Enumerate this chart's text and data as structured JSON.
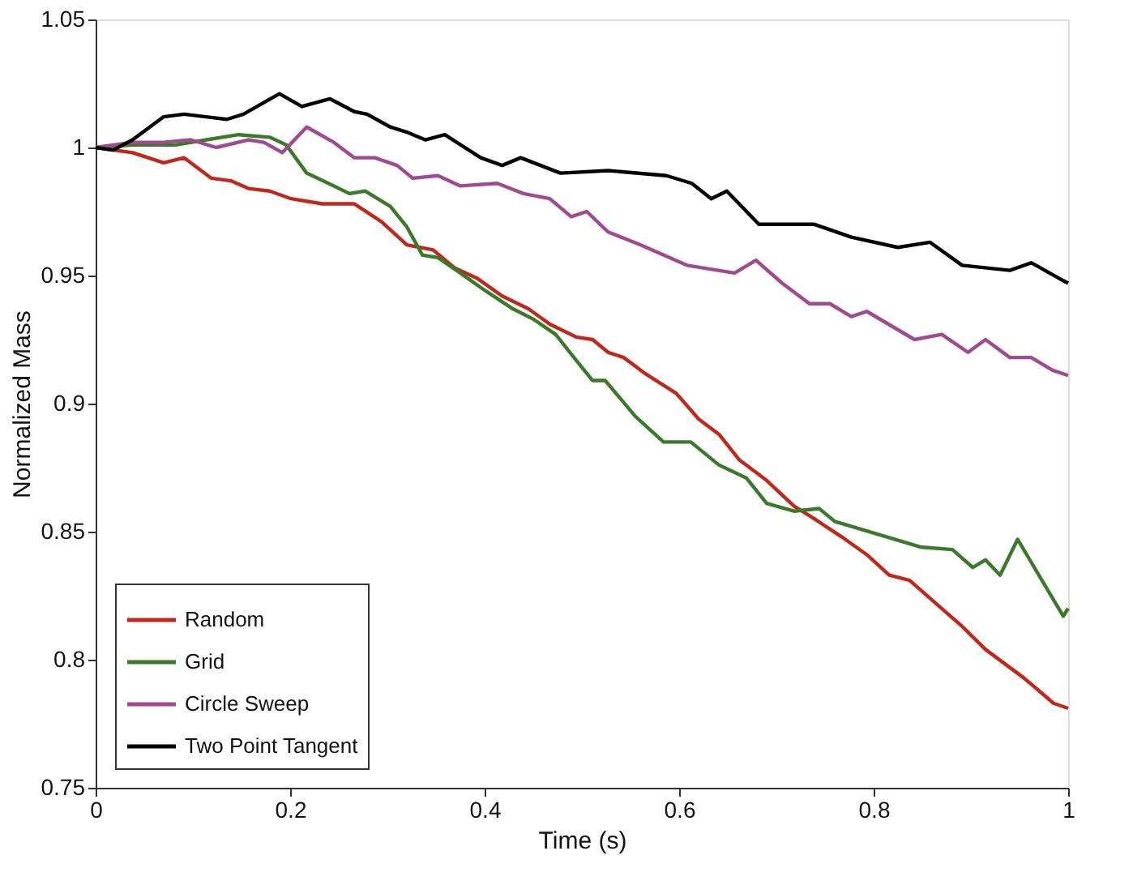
{
  "chart_data": {
    "type": "line",
    "xlabel": "Time (s)",
    "ylabel": "Normalized Mass",
    "xlim": [
      0,
      1
    ],
    "xticks": [
      0,
      0.2,
      0.4,
      0.6,
      0.8,
      1
    ],
    "ylim": [
      0.75,
      1.05
    ],
    "yticks": [
      0.75,
      0.8,
      0.85,
      0.9,
      0.95,
      1,
      1.05
    ],
    "grid": false,
    "legend": "bottom left",
    "marker": "none",
    "line_style": "solid",
    "series": [
      {
        "name": "Random",
        "color": "#c0281c",
        "x": [
          0,
          0.038,
          0.054,
          0.07,
          0.091,
          0.119,
          0.139,
          0.157,
          0.179,
          0.201,
          0.233,
          0.266,
          0.294,
          0.32,
          0.347,
          0.369,
          0.392,
          0.418,
          0.445,
          0.467,
          0.494,
          0.511,
          0.527,
          0.543,
          0.564,
          0.597,
          0.62,
          0.641,
          0.662,
          0.69,
          0.718,
          0.739,
          0.767,
          0.793,
          0.816,
          0.837,
          0.87,
          0.891,
          0.915,
          0.954,
          0.985,
          1
        ],
        "values": [
          1,
          0.998,
          0.996,
          0.994,
          0.996,
          0.988,
          0.987,
          0.984,
          0.983,
          0.98,
          0.978,
          0.978,
          0.971,
          0.962,
          0.96,
          0.953,
          0.949,
          0.942,
          0.937,
          0.931,
          0.926,
          0.925,
          0.92,
          0.918,
          0.912,
          0.904,
          0.894,
          0.888,
          0.878,
          0.87,
          0.86,
          0.855,
          0.848,
          0.841,
          0.833,
          0.831,
          0.82,
          0.813,
          0.804,
          0.793,
          0.783,
          0.781
        ]
      },
      {
        "name": "Grid",
        "color": "#3a7a2a",
        "x": [
          0,
          0.038,
          0.082,
          0.114,
          0.147,
          0.179,
          0.196,
          0.217,
          0.245,
          0.261,
          0.277,
          0.303,
          0.32,
          0.336,
          0.352,
          0.375,
          0.401,
          0.429,
          0.45,
          0.473,
          0.494,
          0.511,
          0.524,
          0.555,
          0.584,
          0.612,
          0.641,
          0.669,
          0.69,
          0.718,
          0.744,
          0.76,
          0.804,
          0.848,
          0.881,
          0.902,
          0.915,
          0.93,
          0.948,
          0.995,
          1
        ],
        "values": [
          1,
          1.001,
          1.001,
          1.003,
          1.005,
          1.004,
          1.001,
          0.99,
          0.985,
          0.982,
          0.983,
          0.977,
          0.969,
          0.958,
          0.957,
          0.951,
          0.944,
          0.937,
          0.933,
          0.927,
          0.917,
          0.909,
          0.909,
          0.895,
          0.885,
          0.885,
          0.876,
          0.871,
          0.861,
          0.858,
          0.859,
          0.854,
          0.849,
          0.844,
          0.843,
          0.836,
          0.839,
          0.833,
          0.847,
          0.817,
          0.82
        ]
      },
      {
        "name": "Circle Sweep",
        "color": "#a04a90",
        "x": [
          0,
          0.038,
          0.07,
          0.098,
          0.124,
          0.157,
          0.173,
          0.192,
          0.217,
          0.245,
          0.266,
          0.287,
          0.31,
          0.326,
          0.352,
          0.375,
          0.413,
          0.44,
          0.467,
          0.489,
          0.505,
          0.527,
          0.56,
          0.608,
          0.657,
          0.679,
          0.706,
          0.734,
          0.755,
          0.777,
          0.793,
          0.842,
          0.87,
          0.897,
          0.915,
          0.94,
          0.962,
          0.984,
          1
        ],
        "values": [
          1,
          1.002,
          1.002,
          1.003,
          1,
          1.003,
          1.002,
          0.998,
          1.008,
          1.002,
          0.996,
          0.996,
          0.993,
          0.988,
          0.989,
          0.985,
          0.986,
          0.982,
          0.98,
          0.973,
          0.975,
          0.967,
          0.962,
          0.954,
          0.951,
          0.956,
          0.947,
          0.939,
          0.939,
          0.934,
          0.936,
          0.925,
          0.927,
          0.92,
          0.925,
          0.918,
          0.918,
          0.913,
          0.911
        ]
      },
      {
        "name": "Two Point Tangent",
        "color": "#000000",
        "x": [
          0,
          0.018,
          0.038,
          0.07,
          0.091,
          0.135,
          0.152,
          0.189,
          0.212,
          0.241,
          0.266,
          0.279,
          0.303,
          0.32,
          0.339,
          0.359,
          0.396,
          0.418,
          0.437,
          0.478,
          0.527,
          0.587,
          0.613,
          0.633,
          0.649,
          0.682,
          0.739,
          0.777,
          0.825,
          0.858,
          0.891,
          0.94,
          0.962,
          0.995,
          1
        ],
        "values": [
          1,
          0.999,
          1.003,
          1.012,
          1.013,
          1.011,
          1.013,
          1.021,
          1.016,
          1.019,
          1.014,
          1.013,
          1.008,
          1.006,
          1.003,
          1.005,
          0.996,
          0.993,
          0.996,
          0.99,
          0.991,
          0.989,
          0.986,
          0.98,
          0.983,
          0.97,
          0.97,
          0.965,
          0.961,
          0.963,
          0.954,
          0.952,
          0.955,
          0.948,
          0.947
        ]
      }
    ]
  }
}
